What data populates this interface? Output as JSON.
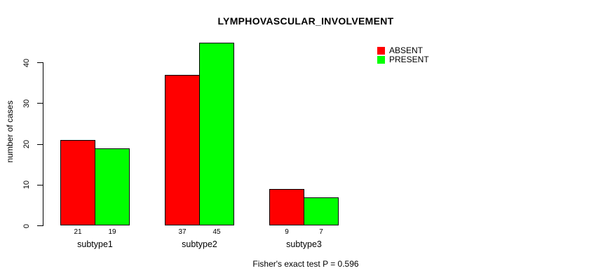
{
  "title": "LYMPHOVASCULAR_INVOLVEMENT",
  "ylabel": "number of cases",
  "caption": "Fisher's exact test P = 0.596",
  "legend": {
    "items": [
      {
        "label": "ABSENT",
        "color": "#FF0000"
      },
      {
        "label": "PRESENT",
        "color": "#00FF00"
      }
    ]
  },
  "chart_data": {
    "type": "bar",
    "title": "LYMPHOVASCULAR_INVOLVEMENT",
    "xlabel": "",
    "ylabel": "number of cases",
    "categories": [
      "subtype1",
      "subtype2",
      "subtype3"
    ],
    "series": [
      {
        "name": "ABSENT",
        "color": "#FF0000",
        "values": [
          21,
          37,
          9
        ]
      },
      {
        "name": "PRESENT",
        "color": "#00FF00",
        "values": [
          19,
          45,
          7
        ]
      }
    ],
    "value_labels": [
      [
        "21",
        "19"
      ],
      [
        "37",
        "45"
      ],
      [
        "9",
        "7"
      ]
    ],
    "yticks": [
      0,
      10,
      20,
      30,
      40
    ],
    "ylim": [
      0,
      45
    ],
    "grid": false,
    "legend_position": "top-right",
    "annotation": "Fisher's exact test P = 0.596"
  }
}
